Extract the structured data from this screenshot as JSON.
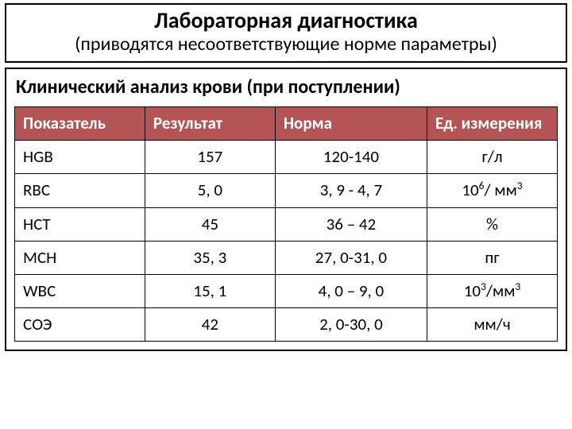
{
  "title": {
    "main": "Лабораторная диагностика",
    "sub": "(приводятся несоответствующие норме параметры)"
  },
  "section_heading": "Клинический анализ крови (при поступлении)",
  "table": {
    "header_bg": "#b55454",
    "header_fg": "#ffffff",
    "border_color": "#000000",
    "col_widths_pct": [
      24,
      24,
      28,
      24
    ],
    "header_fontsize": 21,
    "cell_fontsize": 21,
    "columns": [
      "Показатель",
      "Результат",
      "Норма",
      "Ед. измерения"
    ],
    "rows": [
      {
        "label": "HGB",
        "result": "157",
        "norm": "120-140",
        "unit_html": "г/л"
      },
      {
        "label": "RBC",
        "result": "5, 0",
        "norm": "3, 9  -  4, 7",
        "unit_html": "10<sup>6</sup>/ мм<sup>3</sup>"
      },
      {
        "label": "HCT",
        "result": "45",
        "norm": "36 – 42",
        "unit_html": "%"
      },
      {
        "label": "MCH",
        "result": "35, 3",
        "norm": "27, 0-31, 0",
        "unit_html": "пг"
      },
      {
        "label": "WBC",
        "result": "15, 1",
        "norm": "4, 0 – 9, 0",
        "unit_html": "10<sup>3</sup>/мм<sup>3</sup>"
      },
      {
        "label": "СОЭ",
        "result": "42",
        "norm": "2, 0-30, 0",
        "unit_html": "мм/ч"
      }
    ]
  }
}
